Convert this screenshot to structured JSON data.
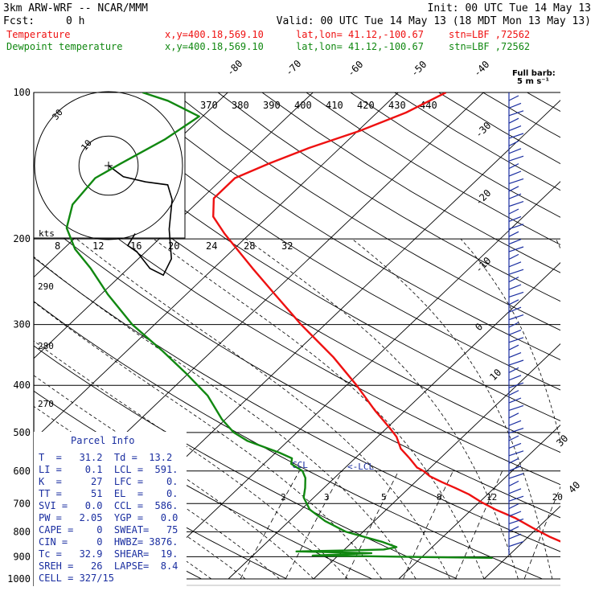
{
  "header": {
    "model": "3km ARW-WRF -- NCAR/MMM",
    "init": "Init: 00 UTC Tue 14 May 13",
    "fcst_label": "Fcst:",
    "fcst_value": "0 h",
    "valid": "Valid: 00 UTC Tue 14 May 13 (18 MDT Mon 13 May 13)"
  },
  "legend": [
    {
      "name": "Temperature",
      "color": "#ee1111",
      "xy": "x,y=400.18,569.10",
      "latlon": "lat,lon= 41.12,-100.67",
      "stn": "stn=LBF ,72562"
    },
    {
      "name": "Dewpoint temperature",
      "color": "#118811",
      "xy": "x,y=400.18,569.10",
      "latlon": "lat,lon= 41.12,-100.67",
      "stn": "stn=LBF ,72562"
    }
  ],
  "chart_data": {
    "type": "line",
    "y_axis": {
      "scale": "log",
      "ticks": [
        100,
        200,
        300,
        400,
        500,
        600,
        700,
        800,
        900,
        1000
      ]
    },
    "isotherm_labels": [
      -80,
      -70,
      -60,
      -50,
      -40,
      -30,
      -20,
      -10,
      0,
      10,
      30,
      40
    ],
    "theta_labels": [
      370,
      380,
      390,
      400,
      410,
      420,
      430,
      440
    ],
    "theta_side_labels": [
      290,
      280,
      270
    ],
    "mixing_ratio_labels": [
      2,
      3,
      5,
      8,
      12,
      20
    ],
    "hodograph_ring_labels": [
      10,
      30
    ],
    "wind_label": "kts",
    "wind_scale_labels": [
      8,
      12,
      16,
      20,
      24,
      28,
      32
    ],
    "ccl_label": "CCL",
    "lcl_label": "LCL",
    "series": [
      {
        "name": "Temperature",
        "color": "#ee1111",
        "points": [
          [
            899,
            31.0
          ],
          [
            880,
            28.6
          ],
          [
            850,
            25.6
          ],
          [
            820,
            22.6
          ],
          [
            785,
            19.4
          ],
          [
            750,
            16.2
          ],
          [
            720,
            12.8
          ],
          [
            695,
            10.2
          ],
          [
            670,
            7.8
          ],
          [
            650,
            5.4
          ],
          [
            633,
            3.2
          ],
          [
            615,
            1.0
          ],
          [
            600,
            -0.4
          ],
          [
            590,
            -1.6
          ],
          [
            565,
            -3.6
          ],
          [
            540,
            -5.8
          ],
          [
            510,
            -7.8
          ],
          [
            490,
            -9.6
          ],
          [
            450,
            -13.6
          ],
          [
            400,
            -18.8
          ],
          [
            350,
            -25.0
          ],
          [
            300,
            -32.8
          ],
          [
            260,
            -39.6
          ],
          [
            230,
            -45.4
          ],
          [
            210,
            -49.6
          ],
          [
            195,
            -53.0
          ],
          [
            180,
            -56.4
          ],
          [
            165,
            -58.6
          ],
          [
            150,
            -58.6
          ],
          [
            140,
            -56.4
          ],
          [
            130,
            -53.6
          ],
          [
            120,
            -49.8
          ],
          [
            110,
            -46.6
          ],
          [
            100,
            -44.4
          ]
        ]
      },
      {
        "name": "Dewpoint temperature",
        "color": "#118811",
        "points": [
          [
            905,
            18.4
          ],
          [
            902,
            11.0
          ],
          [
            898,
            3.0
          ],
          [
            895,
            -3.0
          ],
          [
            885,
            3.6
          ],
          [
            878,
            -5.4
          ],
          [
            873,
            1.4
          ],
          [
            870,
            4.6
          ],
          [
            860,
            5.8
          ],
          [
            840,
            3.6
          ],
          [
            800,
            -2.0
          ],
          [
            760,
            -5.8
          ],
          [
            720,
            -9.0
          ],
          [
            680,
            -11.2
          ],
          [
            650,
            -12.2
          ],
          [
            620,
            -13.4
          ],
          [
            600,
            -14.6
          ],
          [
            580,
            -16.8
          ],
          [
            565,
            -17.4
          ],
          [
            550,
            -19.6
          ],
          [
            520,
            -24.8
          ],
          [
            500,
            -27.4
          ],
          [
            470,
            -30.4
          ],
          [
            420,
            -35.0
          ],
          [
            380,
            -40.0
          ],
          [
            340,
            -45.8
          ],
          [
            300,
            -52.6
          ],
          [
            260,
            -59.2
          ],
          [
            230,
            -64.4
          ],
          [
            210,
            -68.6
          ],
          [
            190,
            -72.2
          ],
          [
            170,
            -74.4
          ],
          [
            150,
            -75.0
          ],
          [
            140,
            -73.8
          ],
          [
            125,
            -71.6
          ],
          [
            112,
            -70.4
          ],
          [
            104,
            -76.0
          ],
          [
            100,
            -80.0
          ]
        ]
      }
    ],
    "hodograph": [
      [
        0,
        0
      ],
      [
        2,
        -1.5
      ],
      [
        5,
        -2.2
      ],
      [
        8,
        -2.6
      ],
      [
        8.6,
        -4.6
      ],
      [
        8.2,
        -8.6
      ],
      [
        8.5,
        -12.6
      ],
      [
        7.4,
        -14.8
      ],
      [
        5.6,
        -13.9
      ],
      [
        3.8,
        -11.6
      ],
      [
        2.6,
        -10.8
      ],
      [
        3.6,
        -9.2
      ]
    ]
  },
  "parcel_info": {
    "title": "Parcel Info",
    "rows": [
      "T  =   31.2  Td =  13.2",
      "LI =    0.1  LCL =  591.",
      "K  =     27  LFC =    0.",
      "TT =     51  EL  =    0.",
      "SVI =   0.0  CCL =  586.",
      "PW =   2.05  YGP =   0.0",
      "CAPE =    0  SWEAT=   75",
      "CIN =     0  HWBZ= 3876.",
      "Tc =   32.9  SHEAR=  19.",
      "SREH =   26  LAPSE=  8.4",
      "CELL = 327/15"
    ]
  },
  "wind_panel": {
    "full_barb_label": "Full barb:",
    "full_barb_value": "5 m s⁻¹"
  },
  "colors": {
    "temperature": "#ee1111",
    "dewpoint": "#118811",
    "parcel_text": "#1a2ea0",
    "wind": "#1a2ea0",
    "grid": "#000000"
  }
}
